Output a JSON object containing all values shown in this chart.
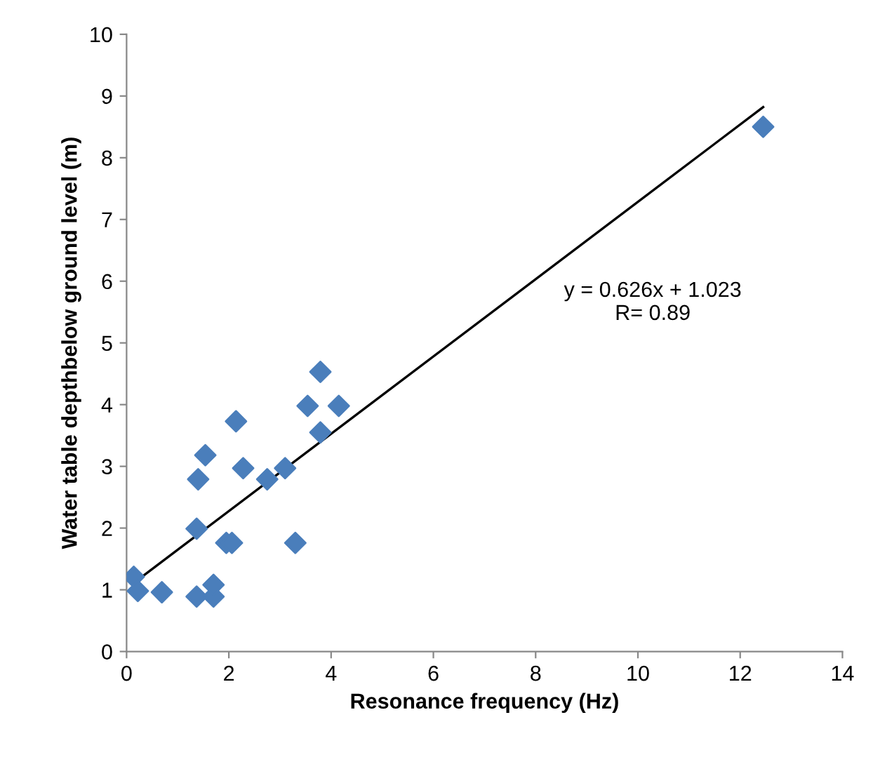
{
  "chart_data": {
    "type": "scatter",
    "xlabel": "Resonance frequency (Hz)",
    "ylabel": "Water table depthbelow ground level (m)",
    "xlim": [
      0,
      14
    ],
    "xticks": [
      0,
      2,
      4,
      6,
      8,
      10,
      12,
      14
    ],
    "ylim": [
      0,
      10
    ],
    "yticks": [
      0,
      1,
      2,
      3,
      4,
      5,
      6,
      7,
      8,
      9,
      10
    ],
    "grid": false,
    "legend": false,
    "marker": "diamond",
    "series": [
      {
        "color": "#4a7ebb",
        "x": [
          0.14,
          0.22,
          0.69,
          1.37,
          1.7,
          1.7,
          1.37,
          1.95,
          2.06,
          1.4,
          1.54,
          2.14,
          2.28,
          2.75,
          3.1,
          3.3,
          3.54,
          3.79,
          3.79,
          4.15,
          12.45
        ],
        "values": [
          1.21,
          0.98,
          0.96,
          0.89,
          0.89,
          1.08,
          1.99,
          1.76,
          1.76,
          2.79,
          3.18,
          3.73,
          2.97,
          2.79,
          2.97,
          1.76,
          3.98,
          3.55,
          4.53,
          3.98,
          8.5
        ]
      },
      {
        "type": "line",
        "color": "#000000",
        "marker": "none",
        "line_style": "solid",
        "x": [
          0.14,
          12.45
        ],
        "values": [
          1.11,
          8.82
        ]
      }
    ],
    "annotations": [
      "y = 0.626x + 1.023\nR= 0.89"
    ]
  }
}
